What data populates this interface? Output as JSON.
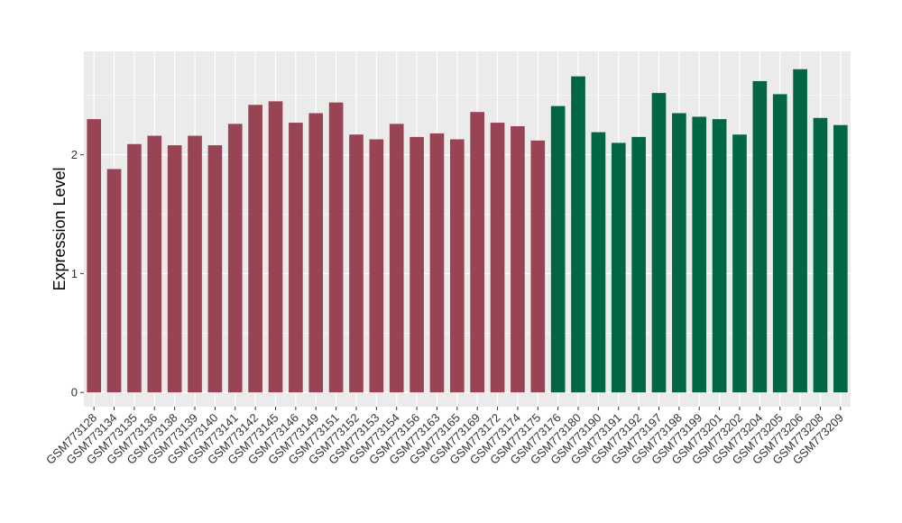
{
  "chart_data": {
    "type": "bar",
    "title": "",
    "xlabel": "",
    "ylabel": "Expression Level",
    "ylim": [
      -0.12,
      2.87
    ],
    "yticks": [
      0,
      1,
      2
    ],
    "grid": true,
    "legend": "none",
    "panel_background": "#EBEBEB",
    "grid_color": "#FFFFFF",
    "categories": [
      "GSM773128",
      "GSM773134",
      "GSM773135",
      "GSM773136",
      "GSM773138",
      "GSM773139",
      "GSM773140",
      "GSM773141",
      "GSM773142",
      "GSM773145",
      "GSM773146",
      "GSM773149",
      "GSM773151",
      "GSM773152",
      "GSM773153",
      "GSM773154",
      "GSM773156",
      "GSM773163",
      "GSM773165",
      "GSM773169",
      "GSM773172",
      "GSM773174",
      "GSM773175",
      "GSM773176",
      "GSM773180",
      "GSM773190",
      "GSM773191",
      "GSM773192",
      "GSM773197",
      "GSM773198",
      "GSM773199",
      "GSM773201",
      "GSM773202",
      "GSM773204",
      "GSM773205",
      "GSM773206",
      "GSM773208",
      "GSM773209"
    ],
    "values": [
      2.3,
      1.88,
      2.09,
      2.16,
      2.08,
      2.16,
      2.08,
      2.26,
      2.42,
      2.45,
      2.27,
      2.35,
      2.44,
      2.17,
      2.13,
      2.26,
      2.15,
      2.18,
      2.13,
      2.36,
      2.27,
      2.24,
      2.12,
      2.41,
      2.66,
      2.19,
      2.1,
      2.15,
      2.52,
      2.35,
      2.32,
      2.3,
      2.17,
      2.62,
      2.51,
      2.72,
      2.31,
      2.25
    ],
    "groups": [
      0,
      0,
      0,
      0,
      0,
      0,
      0,
      0,
      0,
      0,
      0,
      0,
      0,
      0,
      0,
      0,
      0,
      0,
      0,
      0,
      0,
      0,
      0,
      1,
      1,
      1,
      1,
      1,
      1,
      1,
      1,
      1,
      1,
      1,
      1,
      1,
      1,
      1
    ],
    "colors": [
      "#994455",
      "#006644"
    ]
  }
}
